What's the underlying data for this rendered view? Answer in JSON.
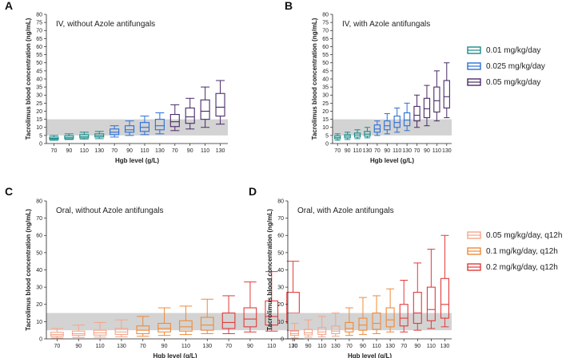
{
  "chart_data": [
    {
      "type": "boxplot",
      "panel_letter": "A",
      "title": "IV, without Azole antifungals",
      "xlabel": "Hgb level (g/L)",
      "ylabel": "Tacrolimus blood concentration (ng/mL)",
      "ylim": [
        0,
        80
      ],
      "yticks": [
        0,
        5,
        10,
        15,
        20,
        25,
        30,
        35,
        40,
        45,
        50,
        55,
        60,
        65,
        70,
        75,
        80
      ],
      "reference_band": [
        5,
        15
      ],
      "categories": [
        "70",
        "90",
        "110",
        "130",
        "70",
        "90",
        "110",
        "130",
        "70",
        "90",
        "110",
        "130"
      ],
      "series": [
        {
          "name": "0.01 mg/kg/day",
          "color": "#1a8a8a",
          "boxes": [
            {
              "min": 2,
              "q1": 2.6,
              "median": 3.2,
              "q3": 4,
              "max": 5
            },
            {
              "min": 2.5,
              "q1": 3,
              "median": 3.8,
              "q3": 4.8,
              "max": 6
            },
            {
              "min": 2.8,
              "q1": 3.5,
              "median": 4.3,
              "q3": 5.5,
              "max": 7
            },
            {
              "min": 3,
              "q1": 4,
              "median": 4.8,
              "q3": 6,
              "max": 7.5
            }
          ]
        },
        {
          "name": "0.025 mg/kg/day",
          "color": "#2a6fd8",
          "boxes": [
            {
              "min": 4,
              "q1": 5.5,
              "median": 7,
              "q3": 9,
              "max": 11
            },
            {
              "min": 5,
              "q1": 7,
              "median": 8.5,
              "q3": 11,
              "max": 14
            },
            {
              "min": 5.5,
              "q1": 7.5,
              "median": 10,
              "q3": 13,
              "max": 17
            },
            {
              "min": 6,
              "q1": 8.5,
              "median": 11,
              "q3": 15,
              "max": 19
            }
          ]
        },
        {
          "name": "0.05  mg/kg/day",
          "color": "#4a2a68",
          "boxes": [
            {
              "min": 8,
              "q1": 10.5,
              "median": 13.5,
              "q3": 18,
              "max": 24
            },
            {
              "min": 9,
              "q1": 12.5,
              "median": 16.5,
              "q3": 22,
              "max": 28
            },
            {
              "min": 10,
              "q1": 15,
              "median": 20,
              "q3": 27,
              "max": 35
            },
            {
              "min": 12,
              "q1": 17,
              "median": 22.5,
              "q3": 31,
              "max": 39
            }
          ]
        }
      ]
    },
    {
      "type": "boxplot",
      "panel_letter": "B",
      "title": "IV, with Azole antifungals",
      "xlabel": "Hgb level (g/L)",
      "ylabel": "Tacrolimus blood concentration (ng/mL)",
      "ylim": [
        0,
        80
      ],
      "yticks": [
        0,
        5,
        10,
        15,
        20,
        25,
        30,
        35,
        40,
        45,
        50,
        55,
        60,
        65,
        70,
        75,
        80
      ],
      "reference_band": [
        5,
        15
      ],
      "categories": [
        "70",
        "90",
        "110",
        "130",
        "70",
        "90",
        "110",
        "130",
        "70",
        "90",
        "110",
        "130"
      ],
      "series": [
        {
          "name": "0.01 mg/kg/day",
          "color": "#1a8a8a",
          "boxes": [
            {
              "min": 2,
              "q1": 3,
              "median": 3.8,
              "q3": 4.8,
              "max": 6
            },
            {
              "min": 2.5,
              "q1": 3.5,
              "median": 4.5,
              "q3": 5.5,
              "max": 7
            },
            {
              "min": 3,
              "q1": 4,
              "median": 5.2,
              "q3": 6.5,
              "max": 8.5
            },
            {
              "min": 3.5,
              "q1": 4.5,
              "median": 5.8,
              "q3": 7.5,
              "max": 10
            }
          ]
        },
        {
          "name": "0.025 mg/kg/day",
          "color": "#2a6fd8",
          "boxes": [
            {
              "min": 5,
              "q1": 7,
              "median": 9,
              "q3": 11.5,
              "max": 14
            },
            {
              "min": 6,
              "q1": 8.5,
              "median": 11,
              "q3": 14,
              "max": 18.5
            },
            {
              "min": 7,
              "q1": 10,
              "median": 13,
              "q3": 17,
              "max": 22
            },
            {
              "min": 8,
              "q1": 11,
              "median": 14.5,
              "q3": 19,
              "max": 25
            }
          ]
        },
        {
          "name": "0.05  mg/kg/day",
          "color": "#4a2a68",
          "boxes": [
            {
              "min": 10,
              "q1": 14,
              "median": 17.5,
              "q3": 23,
              "max": 30
            },
            {
              "min": 11,
              "q1": 16,
              "median": 21.5,
              "q3": 28,
              "max": 36
            },
            {
              "min": 14,
              "q1": 19.5,
              "median": 26.5,
              "q3": 35,
              "max": 45
            },
            {
              "min": 16,
              "q1": 22,
              "median": 29,
              "q3": 39,
              "max": 50
            }
          ]
        }
      ]
    },
    {
      "type": "boxplot",
      "panel_letter": "C",
      "title": "Oral, without Azole antifungals",
      "xlabel": "Hgb level (g/L)",
      "ylabel": "Tacrolimus blood concentration (ng/mL)",
      "ylim": [
        0,
        80
      ],
      "yticks": [
        0,
        10,
        20,
        30,
        40,
        50,
        60,
        70,
        80
      ],
      "reference_band": [
        5,
        15
      ],
      "categories": [
        "70",
        "90",
        "110",
        "130",
        "70",
        "90",
        "110",
        "130",
        "70",
        "90",
        "110",
        "130"
      ],
      "series": [
        {
          "name": "0.05 mg/kg/day,  q12h",
          "color": "#f4a58a",
          "boxes": [
            {
              "min": 0.5,
              "q1": 1.5,
              "median": 2.5,
              "q3": 3.8,
              "max": 6
            },
            {
              "min": 0.8,
              "q1": 2,
              "median": 3,
              "q3": 4.5,
              "max": 8
            },
            {
              "min": 1,
              "q1": 2.2,
              "median": 3.5,
              "q3": 5,
              "max": 9.5
            },
            {
              "min": 1.2,
              "q1": 2.5,
              "median": 4,
              "q3": 6,
              "max": 11
            }
          ]
        },
        {
          "name": "0.1 mg/kg/day,  q12h",
          "color": "#ef8a3a",
          "boxes": [
            {
              "min": 1.5,
              "q1": 3,
              "median": 5,
              "q3": 7.5,
              "max": 13
            },
            {
              "min": 2,
              "q1": 4,
              "median": 6,
              "q3": 9,
              "max": 18
            },
            {
              "min": 2.5,
              "q1": 4.5,
              "median": 7,
              "q3": 10.5,
              "max": 19
            },
            {
              "min": 3,
              "q1": 5,
              "median": 8,
              "q3": 12.5,
              "max": 23
            }
          ]
        },
        {
          "name": "0.2 mg/kg/day, q12h",
          "color": "#e23a3a",
          "boxes": [
            {
              "min": 3,
              "q1": 6,
              "median": 9.5,
              "q3": 15,
              "max": 25
            },
            {
              "min": 4,
              "q1": 7,
              "median": 11.5,
              "q3": 18,
              "max": 33
            },
            {
              "min": 4.5,
              "q1": 8,
              "median": 13,
              "q3": 22,
              "max": 39
            },
            {
              "min": 5,
              "q1": 9,
              "median": 15,
              "q3": 27,
              "max": 45
            }
          ]
        }
      ]
    },
    {
      "type": "boxplot",
      "panel_letter": "D",
      "title": "Oral, with Azole antifungals",
      "xlabel": "Hgb level (g/L)",
      "ylabel": "Tacrolimus blood concentration (ng/mL)",
      "ylim": [
        0,
        80
      ],
      "yticks": [
        0,
        10,
        20,
        30,
        40,
        50,
        60,
        70,
        80
      ],
      "reference_band": [
        5,
        15
      ],
      "categories": [
        "70",
        "90",
        "110",
        "130",
        "70",
        "90",
        "110",
        "130",
        "70",
        "90",
        "110",
        "130"
      ],
      "series": [
        {
          "name": "0.05 mg/kg/day,  q12h",
          "color": "#f4a58a",
          "boxes": [
            {
              "min": 0.5,
              "q1": 2,
              "median": 3,
              "q3": 4.5,
              "max": 9
            },
            {
              "min": 1,
              "q1": 2.3,
              "median": 3.5,
              "q3": 5.5,
              "max": 11
            },
            {
              "min": 1.2,
              "q1": 2.5,
              "median": 4,
              "q3": 6.5,
              "max": 13
            },
            {
              "min": 1.5,
              "q1": 3,
              "median": 4.5,
              "q3": 7.5,
              "max": 15
            }
          ]
        },
        {
          "name": "0.1 mg/kg/day,  q12h",
          "color": "#ef8a3a",
          "boxes": [
            {
              "min": 2,
              "q1": 4,
              "median": 6,
              "q3": 9.5,
              "max": 18
            },
            {
              "min": 2.5,
              "q1": 5,
              "median": 8,
              "q3": 12,
              "max": 24
            },
            {
              "min": 3,
              "q1": 5.5,
              "median": 9,
              "q3": 15,
              "max": 25
            },
            {
              "min": 4,
              "q1": 7,
              "median": 11,
              "q3": 18,
              "max": 29
            }
          ]
        },
        {
          "name": "0.2 mg/kg/day, q12h",
          "color": "#e23a3a",
          "boxes": [
            {
              "min": 4,
              "q1": 7.5,
              "median": 12,
              "q3": 20,
              "max": 34
            },
            {
              "min": 5,
              "q1": 9,
              "median": 15,
              "q3": 27,
              "max": 44
            },
            {
              "min": 6,
              "q1": 10.5,
              "median": 17,
              "q3": 30,
              "max": 52
            },
            {
              "min": 7,
              "q1": 12,
              "median": 20,
              "q3": 35,
              "max": 60
            }
          ]
        }
      ]
    }
  ],
  "legends": {
    "iv": [
      {
        "label": "0.01 mg/kg/day",
        "color": "#1a8a8a"
      },
      {
        "label": "0.025 mg/kg/day",
        "color": "#2a6fd8"
      },
      {
        "label": "0.05  mg/kg/day",
        "color": "#4a2a68"
      }
    ],
    "oral": [
      {
        "label": "0.05 mg/kg/day,  q12h",
        "color": "#f4a58a"
      },
      {
        "label": "0.1 mg/kg/day,  q12h",
        "color": "#ef8a3a"
      },
      {
        "label": "0.2 mg/kg/day, q12h",
        "color": "#e23a3a"
      }
    ]
  }
}
